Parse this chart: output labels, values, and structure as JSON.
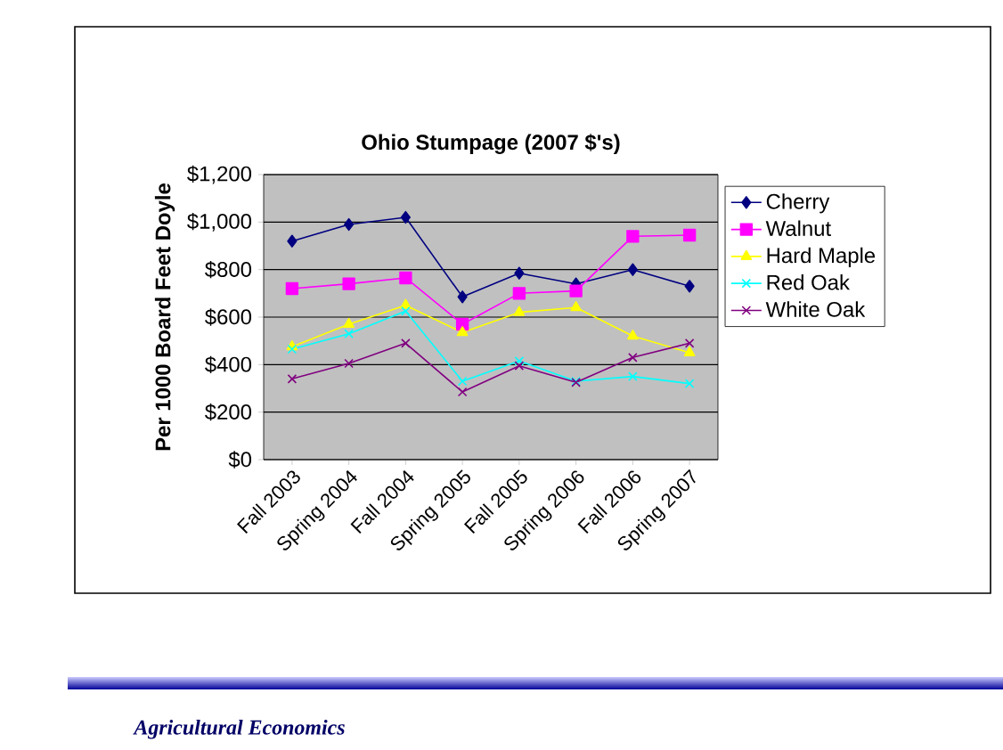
{
  "chart_data": {
    "type": "line",
    "title": "Ohio Stumpage (2007 $'s)",
    "ylabel": "Per 1000 Board Feet Doyle",
    "categories": [
      "Fall 2003",
      "Spring 2004",
      "Fall 2004",
      "Spring 2005",
      "Fall 2005",
      "Spring 2006",
      "Fall 2006",
      "Spring 2007"
    ],
    "series": [
      {
        "name": "Cherry",
        "color": "#000080",
        "marker": "diamond",
        "values": [
          920,
          990,
          1020,
          685,
          785,
          740,
          800,
          730
        ]
      },
      {
        "name": "Walnut",
        "color": "#ff00ff",
        "marker": "square",
        "values": [
          720,
          740,
          765,
          570,
          700,
          710,
          940,
          945
        ]
      },
      {
        "name": "Hard Maple",
        "color": "#ffff00",
        "marker": "triangle",
        "values": [
          475,
          570,
          650,
          535,
          620,
          640,
          520,
          450
        ]
      },
      {
        "name": "Red Oak",
        "color": "#00ffff",
        "marker": "cross",
        "values": [
          465,
          530,
          625,
          330,
          415,
          330,
          350,
          320
        ]
      },
      {
        "name": "White Oak",
        "color": "#800080",
        "marker": "cross",
        "values": [
          340,
          405,
          490,
          285,
          395,
          325,
          430,
          490
        ]
      }
    ],
    "ylim": [
      0,
      1200
    ],
    "yticks": [
      {
        "value": 0,
        "label": "$0"
      },
      {
        "value": 200,
        "label": "$200"
      },
      {
        "value": 400,
        "label": "$400"
      },
      {
        "value": 600,
        "label": "$600"
      },
      {
        "value": 800,
        "label": "$800"
      },
      {
        "value": 1000,
        "label": "$1,000"
      },
      {
        "value": 1200,
        "label": "$1,200"
      }
    ],
    "grid": "y",
    "legend": "right",
    "line_style": "solid",
    "annotations": [
      "Agricultural Economics"
    ]
  }
}
